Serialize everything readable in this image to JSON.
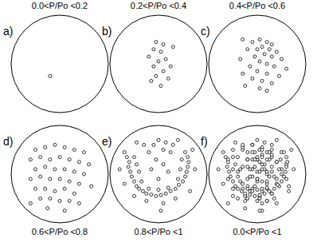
{
  "chart_data": [
    {
      "type": "scatter",
      "title": "0.0<P/Po <0.2",
      "annotations": [
        "a)"
      ],
      "xlim": [
        -1,
        1
      ],
      "ylim": [
        -1,
        1
      ],
      "tick_labels": false,
      "marker": "open-circle",
      "color": "#000000",
      "x": [
        -0.2
      ],
      "values": [
        -0.25
      ]
    },
    {
      "type": "scatter",
      "title": "0.2<P/Po <0.4",
      "annotations": [
        "b)"
      ],
      "xlim": [
        -1,
        1
      ],
      "ylim": [
        -1,
        1
      ],
      "tick_labels": false,
      "marker": "open-circle",
      "color": "#000000",
      "x": [
        -0.05,
        0.1,
        -0.1,
        0.05,
        -0.2,
        0.15,
        0.0,
        -0.1,
        0.25,
        0.1,
        -0.05,
        0.2,
        0.3,
        -0.15,
        0.05
      ],
      "values": [
        0.45,
        0.4,
        0.3,
        0.25,
        0.15,
        0.1,
        0.05,
        -0.05,
        -0.05,
        -0.15,
        -0.25,
        -0.3,
        0.35,
        -0.35,
        -0.45
      ]
    },
    {
      "type": "scatter",
      "title": "0.4<P/Po <0.6",
      "annotations": [
        "c)"
      ],
      "xlim": [
        -1,
        1
      ],
      "ylim": [
        -1,
        1
      ],
      "tick_labels": false,
      "marker": "open-circle",
      "color": "#000000",
      "x": [
        -0.3,
        -0.1,
        0.05,
        0.2,
        0.3,
        0.1,
        0.0,
        0.25,
        -0.2,
        0.4,
        0.15,
        -0.05,
        0.3,
        0.5,
        -0.35,
        0.05,
        0.2,
        -0.15,
        0.35,
        0.6,
        0.0,
        -0.3,
        0.2,
        0.45,
        -0.1,
        0.1,
        0.3,
        -0.25,
        0.05,
        0.2
      ],
      "values": [
        0.5,
        0.45,
        0.5,
        0.45,
        0.4,
        0.35,
        0.3,
        0.3,
        0.3,
        0.25,
        0.2,
        0.15,
        0.15,
        0.1,
        0.1,
        0.05,
        0.0,
        -0.05,
        -0.05,
        -0.1,
        -0.15,
        -0.2,
        -0.2,
        -0.25,
        -0.3,
        -0.35,
        -0.4,
        -0.45,
        -0.5,
        -0.55
      ]
    },
    {
      "type": "scatter",
      "title": "0.6<P/Po <0.8",
      "annotations": [
        "d)"
      ],
      "xlim": [
        -1,
        1
      ],
      "ylim": [
        -1,
        1
      ],
      "tick_labels": false,
      "marker": "open-circle",
      "color": "#000000",
      "x": [
        -0.85,
        -0.5,
        -0.3,
        -0.1,
        0.1,
        0.3,
        0.5,
        -0.6,
        -0.4,
        -0.2,
        0.0,
        0.2,
        0.4,
        0.6,
        -0.5,
        -0.3,
        -0.1,
        0.1,
        0.3,
        0.5,
        -0.6,
        -0.4,
        -0.2,
        0.0,
        0.2,
        0.4,
        0.65,
        -0.5,
        -0.3,
        -0.1,
        0.1,
        0.3,
        -0.4,
        -0.2,
        0.0,
        0.2,
        -0.6,
        0.4,
        0.1,
        -0.25
      ],
      "values": [
        0.55,
        0.5,
        0.55,
        0.6,
        0.55,
        0.5,
        0.45,
        0.3,
        0.35,
        0.3,
        0.35,
        0.3,
        0.25,
        0.2,
        0.1,
        0.15,
        0.1,
        0.1,
        0.05,
        0.0,
        -0.1,
        -0.05,
        -0.1,
        -0.1,
        -0.15,
        -0.2,
        -0.25,
        -0.3,
        -0.3,
        -0.35,
        -0.3,
        -0.4,
        -0.5,
        -0.5,
        -0.55,
        -0.55,
        -0.6,
        -0.6,
        -0.75,
        -0.7
      ]
    },
    {
      "type": "scatter",
      "title": "0.8<P/Po <1",
      "annotations": [
        "e)"
      ],
      "xlim": [
        -1,
        1
      ],
      "ylim": [
        -1,
        1
      ],
      "tick_labels": false,
      "marker": "open-circle",
      "color": "#000000",
      "x": [
        -0.7,
        -0.65,
        -0.6,
        -0.62,
        -0.58,
        -0.55,
        -0.5,
        -0.45,
        -0.4,
        -0.32,
        -0.25,
        -0.15,
        -0.05,
        0.05,
        0.15,
        0.25,
        0.35,
        0.42,
        0.5,
        0.55,
        0.58,
        0.6,
        0.62,
        0.6,
        0.55,
        -0.5,
        -0.45,
        -0.4,
        -0.35,
        -0.2,
        0.0,
        0.2,
        0.4,
        0.45,
        0.48,
        -0.1,
        0.0,
        0.15,
        0.3,
        -0.3,
        -0.2,
        0.1,
        0.25,
        -0.05,
        0.1,
        -0.15,
        0.2,
        0.0,
        -0.25,
        0.1,
        0.35,
        -0.5,
        0.65,
        -0.8,
        0.75,
        0.4,
        -0.45,
        0.05,
        -0.7,
        0.7
      ],
      "values": [
        0.45,
        0.35,
        0.25,
        0.15,
        0.05,
        -0.05,
        -0.15,
        -0.25,
        -0.3,
        -0.35,
        -0.4,
        -0.42,
        -0.45,
        -0.43,
        -0.4,
        -0.35,
        -0.3,
        -0.22,
        -0.15,
        -0.05,
        0.05,
        0.15,
        0.25,
        0.35,
        0.45,
        0.35,
        0.2,
        0.05,
        -0.15,
        -0.3,
        -0.32,
        -0.28,
        -0.1,
        0.1,
        0.3,
        0.6,
        0.7,
        0.65,
        0.6,
        0.6,
        0.45,
        0.5,
        0.45,
        0.3,
        0.2,
        0.1,
        0.05,
        -0.1,
        -0.55,
        -0.6,
        -0.5,
        -0.45,
        -0.35,
        0.1,
        0.1,
        0.7,
        0.65,
        -0.75,
        -0.2,
        0.5
      ]
    },
    {
      "type": "scatter",
      "title": "0.0<P/Po <1",
      "annotations": [
        "f)"
      ],
      "xlim": [
        -1,
        1
      ],
      "ylim": [
        -1,
        1
      ],
      "tick_labels": false,
      "marker": "open-circle",
      "color": "#000000",
      "x": [
        -0.2,
        -0.05,
        0.1,
        -0.1,
        0.05,
        -0.2,
        0.15,
        0.0,
        -0.1,
        0.25,
        0.1,
        -0.05,
        0.2,
        0.3,
        -0.15,
        0.05,
        -0.3,
        -0.1,
        0.05,
        0.2,
        0.3,
        0.1,
        0.0,
        0.25,
        -0.2,
        0.4,
        0.15,
        -0.05,
        0.3,
        0.5,
        -0.35,
        0.05,
        0.2,
        -0.15,
        0.35,
        0.6,
        0.0,
        -0.3,
        0.2,
        0.45,
        -0.1,
        0.1,
        0.3,
        -0.25,
        0.05,
        0.2,
        -0.85,
        -0.5,
        -0.3,
        -0.1,
        0.1,
        0.3,
        0.5,
        -0.6,
        -0.4,
        -0.2,
        0.0,
        0.2,
        0.4,
        0.6,
        -0.5,
        -0.3,
        -0.1,
        0.1,
        0.3,
        0.5,
        -0.6,
        -0.4,
        -0.2,
        0.0,
        0.2,
        0.4,
        0.65,
        -0.5,
        -0.3,
        -0.1,
        0.1,
        0.3,
        -0.4,
        -0.2,
        0.0,
        0.2,
        -0.6,
        0.4,
        0.1,
        -0.25,
        -0.7,
        -0.65,
        -0.6,
        -0.62,
        -0.58,
        -0.55,
        -0.5,
        -0.45,
        -0.4,
        -0.32,
        -0.25,
        -0.15,
        -0.05,
        0.05,
        0.15,
        0.25,
        0.35,
        0.42,
        0.5,
        0.55,
        0.58,
        0.6,
        0.62,
        0.6,
        0.55,
        -0.5,
        -0.45,
        -0.4,
        -0.35,
        -0.2,
        0.0,
        0.2,
        0.4,
        0.45,
        0.48,
        -0.1,
        0.0,
        0.15,
        0.3,
        -0.3,
        -0.2,
        0.1,
        0.25,
        -0.05,
        0.1,
        -0.15,
        0.2,
        0.0,
        -0.25,
        0.1,
        0.35,
        -0.5,
        0.65,
        -0.8,
        0.75,
        0.4,
        -0.45,
        0.05,
        -0.7,
        0.7
      ],
      "values": [
        -0.25,
        0.45,
        0.4,
        0.3,
        0.25,
        0.15,
        0.1,
        0.05,
        -0.05,
        -0.05,
        -0.15,
        -0.25,
        -0.3,
        0.35,
        -0.35,
        -0.45,
        0.5,
        0.45,
        0.5,
        0.45,
        0.4,
        0.35,
        0.3,
        0.3,
        0.3,
        0.25,
        0.2,
        0.15,
        0.15,
        0.1,
        0.1,
        0.05,
        0.0,
        -0.05,
        -0.05,
        -0.1,
        -0.15,
        -0.2,
        -0.2,
        -0.25,
        -0.3,
        -0.35,
        -0.4,
        -0.45,
        -0.5,
        -0.55,
        0.55,
        0.5,
        0.55,
        0.6,
        0.55,
        0.5,
        0.45,
        0.3,
        0.35,
        0.3,
        0.35,
        0.3,
        0.25,
        0.2,
        0.1,
        0.15,
        0.1,
        0.1,
        0.05,
        0.0,
        -0.1,
        -0.05,
        -0.1,
        -0.1,
        -0.15,
        -0.2,
        -0.25,
        -0.3,
        -0.3,
        -0.35,
        -0.3,
        -0.4,
        -0.5,
        -0.5,
        -0.55,
        -0.55,
        -0.6,
        -0.6,
        -0.75,
        -0.7,
        0.45,
        0.35,
        0.25,
        0.15,
        0.05,
        -0.05,
        -0.15,
        -0.25,
        -0.3,
        -0.35,
        -0.4,
        -0.42,
        -0.45,
        -0.43,
        -0.4,
        -0.35,
        -0.3,
        -0.22,
        -0.15,
        -0.05,
        0.05,
        0.15,
        0.25,
        0.35,
        0.45,
        0.35,
        0.2,
        0.05,
        -0.15,
        -0.3,
        -0.32,
        -0.28,
        -0.1,
        0.1,
        0.3,
        0.6,
        0.7,
        0.65,
        0.6,
        0.6,
        0.45,
        0.5,
        0.45,
        0.3,
        0.2,
        0.1,
        0.05,
        -0.1,
        -0.55,
        -0.6,
        -0.5,
        -0.45,
        -0.35,
        0.1,
        0.1,
        0.7,
        0.65,
        -0.75,
        -0.2,
        0.5
      ]
    }
  ]
}
